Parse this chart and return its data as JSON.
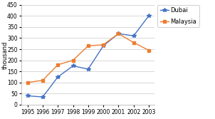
{
  "years": [
    1995,
    1996,
    1997,
    1998,
    1999,
    2000,
    2001,
    2002,
    2003
  ],
  "dubai": [
    40,
    35,
    125,
    175,
    160,
    265,
    320,
    310,
    400
  ],
  "malaysia": [
    100,
    110,
    180,
    200,
    265,
    270,
    320,
    280,
    245
  ],
  "dubai_color": "#4472C4",
  "malaysia_color": "#ED7D31",
  "dubai_label": "Dubai",
  "malaysia_label": "Malaysia",
  "ylabel": "thousand",
  "ylim": [
    0,
    450
  ],
  "yticks": [
    0,
    50,
    100,
    150,
    200,
    250,
    300,
    350,
    400,
    450
  ],
  "bg_color": "#FFFFFF",
  "grid_color": "#C8C8C8",
  "label_fontsize": 6,
  "tick_fontsize": 5.5,
  "marker_dubai": "*",
  "marker_malaysia": "s",
  "linewidth": 1.0
}
